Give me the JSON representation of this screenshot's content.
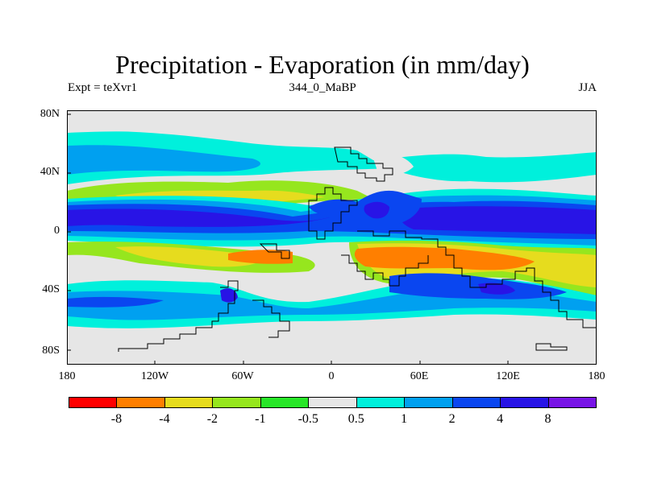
{
  "header": {
    "title": "Precipitation - Evaporation (in mm/day)",
    "left": "Expt = teXvr1",
    "center": "344_0_MaBP",
    "right": "JJA"
  },
  "axes": {
    "y_ticks": [
      "80N",
      "40N",
      "0",
      "40S",
      "80S"
    ],
    "x_ticks": [
      "180",
      "120W",
      "60W",
      "0",
      "60E",
      "120E",
      "180"
    ]
  },
  "colorbar": {
    "colors": [
      "#ff0000",
      "#ff7f00",
      "#e6dc1e",
      "#96e61e",
      "#28e628",
      "#e6e6e6",
      "#00f0dc",
      "#00a0f0",
      "#0a46f0",
      "#2814e6",
      "#7814e6"
    ],
    "labels": [
      "-8",
      "-4",
      "-2",
      "-1",
      "-0.5",
      "0.5",
      "1",
      "2",
      "4",
      "8"
    ]
  },
  "map": {
    "background_color": "#e6e6e6",
    "coastline_color": "#000000"
  }
}
